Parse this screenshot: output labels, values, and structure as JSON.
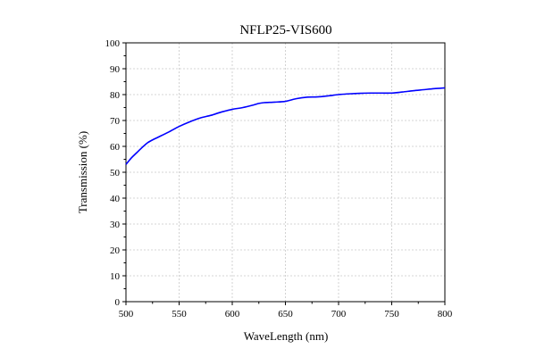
{
  "chart_data": {
    "type": "line",
    "title": "NFLP25-VIS600",
    "xlabel": "WaveLength (nm)",
    "ylabel": "Transmission (%)",
    "xlim": [
      500,
      800
    ],
    "ylim": [
      0,
      100
    ],
    "xticks": [
      500,
      550,
      600,
      650,
      700,
      750,
      800
    ],
    "yticks": [
      0,
      10,
      20,
      30,
      40,
      50,
      60,
      70,
      80,
      90,
      100
    ],
    "grid": true,
    "line_color": "#0000ff",
    "series": [
      {
        "x": [
          500,
          505,
          510,
          515,
          520,
          525,
          530,
          540,
          550,
          560,
          570,
          580,
          590,
          600,
          610,
          620,
          625,
          630,
          640,
          650,
          660,
          670,
          680,
          690,
          700,
          710,
          720,
          730,
          740,
          750,
          760,
          770,
          780,
          790,
          800
        ],
        "y": [
          53.0,
          55.5,
          57.5,
          59.5,
          61.3,
          62.5,
          63.5,
          65.5,
          67.7,
          69.5,
          71.0,
          72.0,
          73.3,
          74.3,
          75.0,
          76.0,
          76.6,
          76.9,
          77.1,
          77.4,
          78.4,
          79.0,
          79.1,
          79.5,
          80.0,
          80.3,
          80.5,
          80.6,
          80.6,
          80.6,
          81.0,
          81.5,
          81.9,
          82.3,
          82.6
        ]
      }
    ]
  }
}
